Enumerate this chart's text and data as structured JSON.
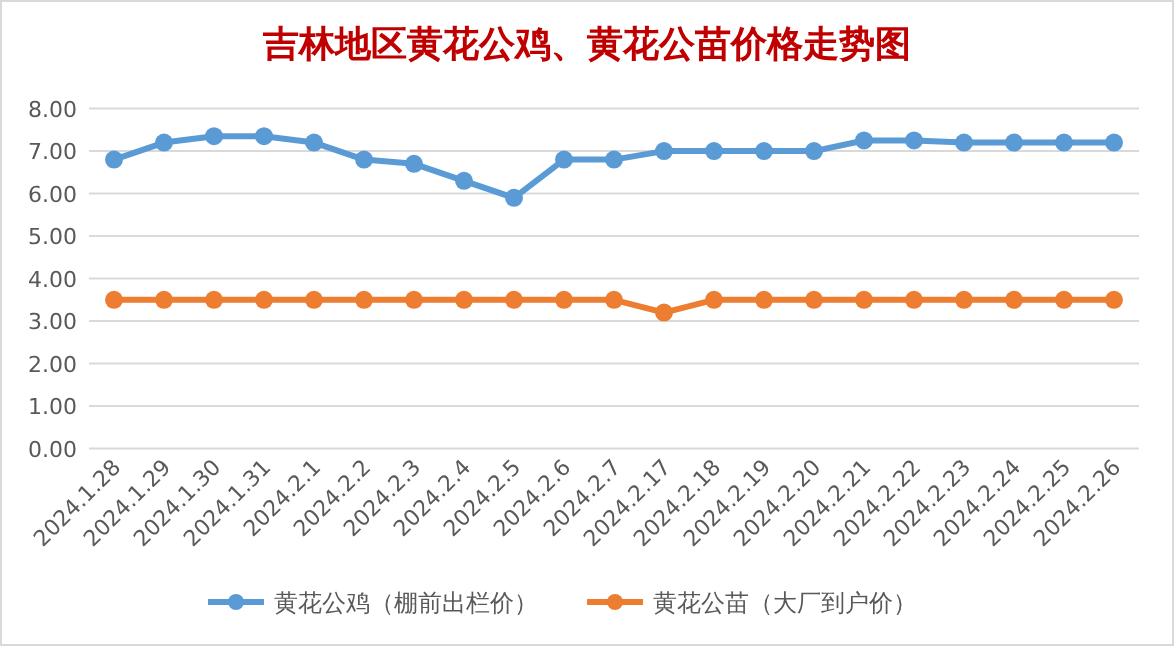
{
  "chart_data": {
    "type": "line",
    "title": "吉林地区黄花公鸡、黄花公苗价格走势图",
    "categories": [
      "2024.1.28",
      "2024.1.29",
      "2024.1.30",
      "2024.1.31",
      "2024.2.1",
      "2024.2.2",
      "2024.2.3",
      "2024.2.4",
      "2024.2.5",
      "2024.2.6",
      "2024.2.7",
      "2024.2.17",
      "2024.2.18",
      "2024.2.19",
      "2024.2.20",
      "2024.2.21",
      "2024.2.22",
      "2024.2.23",
      "2024.2.24",
      "2024.2.25",
      "2024.2.26"
    ],
    "series": [
      {
        "name": "黄花公鸡（棚前出栏价）",
        "color": "#5b9bd5",
        "values": [
          6.8,
          7.2,
          7.35,
          7.35,
          7.2,
          6.8,
          6.7,
          6.3,
          5.9,
          6.8,
          6.8,
          7.0,
          7.0,
          7.0,
          7.0,
          7.25,
          7.25,
          7.2,
          7.2,
          7.2,
          7.2
        ]
      },
      {
        "name": "黄花公苗（大厂到户价）",
        "color": "#ed7d31",
        "values": [
          3.5,
          3.5,
          3.5,
          3.5,
          3.5,
          3.5,
          3.5,
          3.5,
          3.5,
          3.5,
          3.5,
          3.2,
          3.5,
          3.5,
          3.5,
          3.5,
          3.5,
          3.5,
          3.5,
          3.5,
          3.5
        ]
      }
    ],
    "ylim": [
      0,
      8
    ],
    "yticks": [
      {
        "value": 0,
        "label": "0.00"
      },
      {
        "value": 1,
        "label": "1.00"
      },
      {
        "value": 2,
        "label": "2.00"
      },
      {
        "value": 3,
        "label": "3.00"
      },
      {
        "value": 4,
        "label": "4.00"
      },
      {
        "value": 5,
        "label": "5.00"
      },
      {
        "value": 6,
        "label": "6.00"
      },
      {
        "value": 7,
        "label": "7.00"
      },
      {
        "value": 8,
        "label": "8.00"
      }
    ],
    "grid": "y",
    "legend": "bottom",
    "marker": "circle",
    "line_style": "solid"
  }
}
